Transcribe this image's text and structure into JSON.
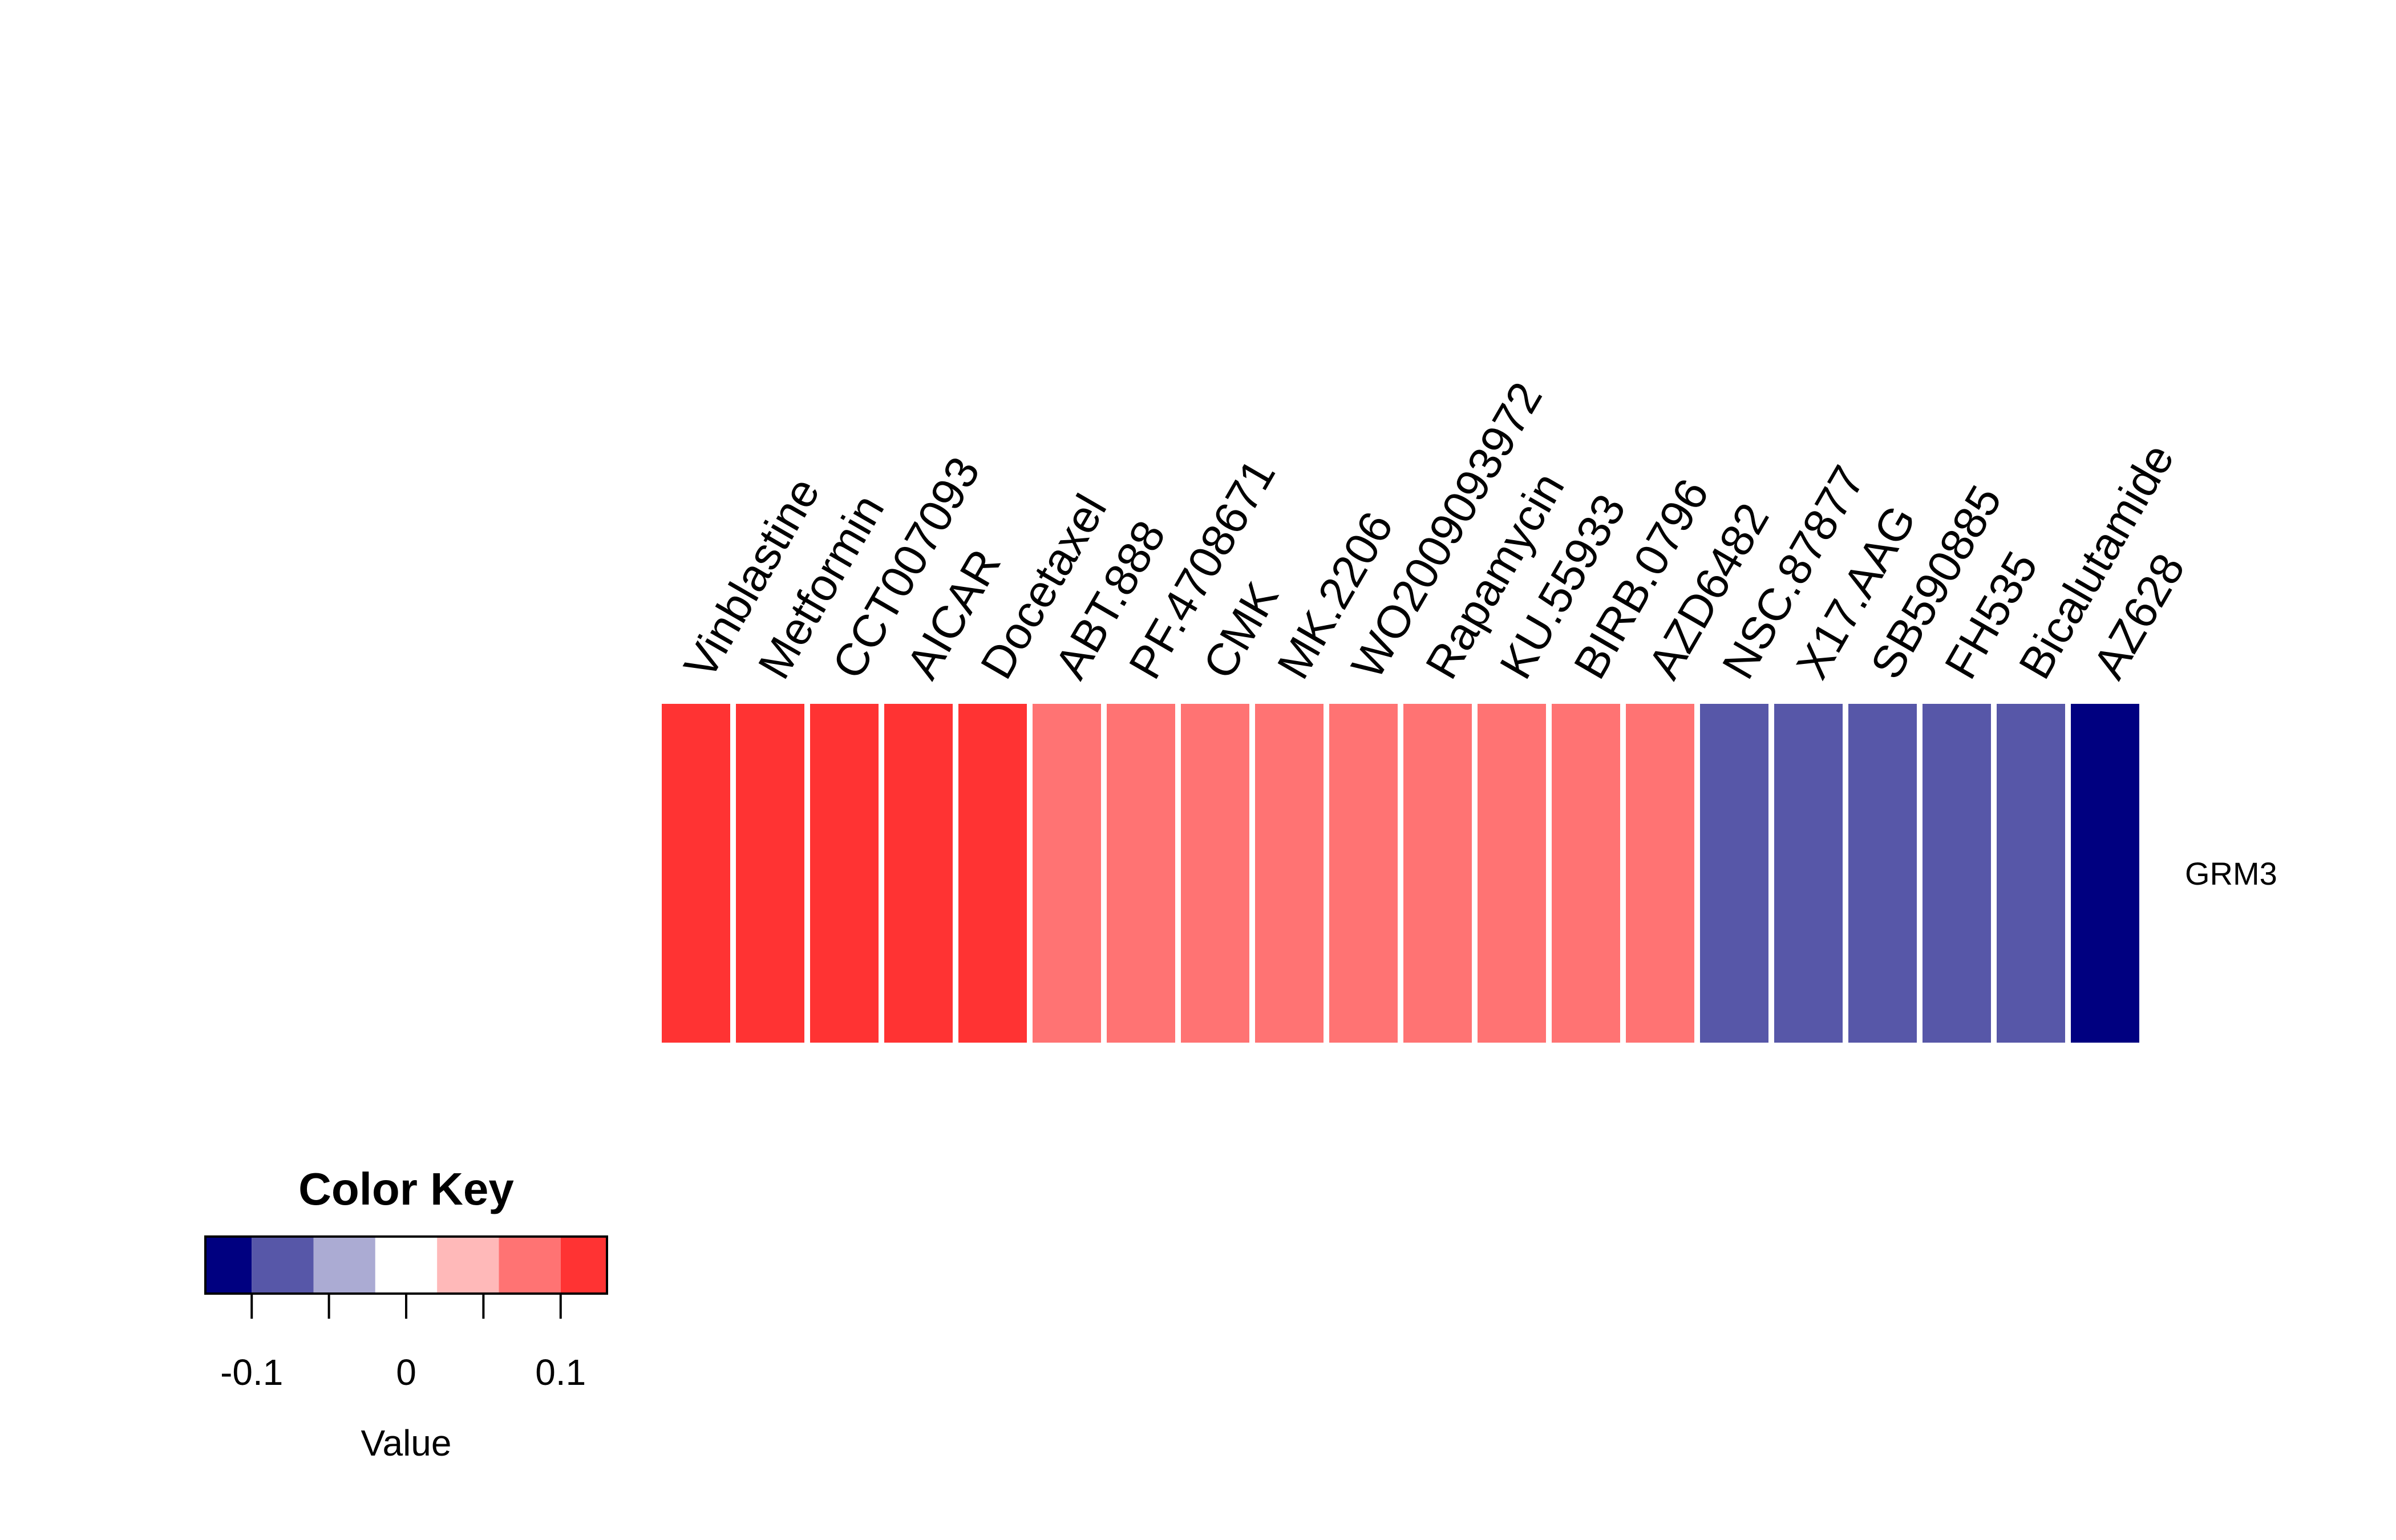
{
  "chart_data": {
    "type": "heatmap",
    "rows": [
      "GRM3"
    ],
    "columns": [
      "Vinblastine",
      "Metformin",
      "CCT007093",
      "AICAR",
      "Docetaxel",
      "ABT.888",
      "PF.4708671",
      "CMK",
      "MK.2206",
      "WO2009093972",
      "Rapamycin",
      "KU.55933",
      "BIRB.0796",
      "AZD6482",
      "NSC.87877",
      "X17.AAG",
      "SB590885",
      "FH535",
      "Bicalutamide",
      "AZ628"
    ],
    "values": [
      [
        0.12,
        0.12,
        0.12,
        0.12,
        0.12,
        0.07,
        0.07,
        0.07,
        0.07,
        0.07,
        0.07,
        0.07,
        0.07,
        0.07,
        -0.07,
        -0.07,
        -0.07,
        -0.07,
        -0.07,
        -0.12
      ]
    ],
    "color_key": {
      "title": "Color Key",
      "xlabel": "Value",
      "breaks": [
        -0.13,
        -0.1,
        -0.06,
        -0.02,
        0.02,
        0.06,
        0.1,
        0.13
      ],
      "colors": [
        "#000080",
        "#5757A8",
        "#ABABD3",
        "#FFFFFF",
        "#FFB9B9",
        "#FF7373",
        "#FF3333"
      ],
      "ticks": [
        -0.1,
        -0.05,
        0,
        0.05,
        0.1
      ],
      "tick_labels": [
        "-0.1",
        "",
        "0",
        "",
        "0.1"
      ]
    }
  }
}
